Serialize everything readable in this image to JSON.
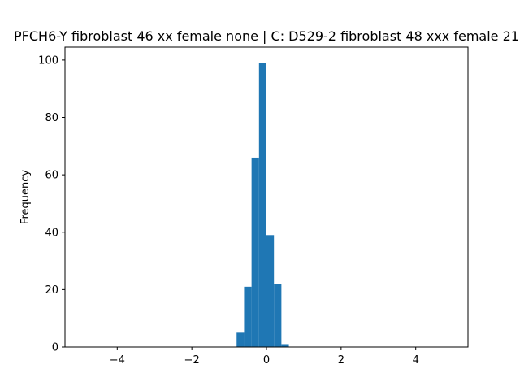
{
  "chart_data": {
    "type": "bar",
    "title": "PFCH6-Y fibroblast 46 xx female none | C: D529-2 fibroblast 48 xxx female 21",
    "xlabel": "",
    "ylabel": "Frequency",
    "xlim": [
      -5.4,
      5.4
    ],
    "ylim": [
      0,
      104.5
    ],
    "xticks": [
      -4,
      -2,
      0,
      2,
      4
    ],
    "xtick_labels": [
      "−4",
      "−2",
      "0",
      "2",
      "4"
    ],
    "yticks": [
      0,
      20,
      40,
      60,
      80,
      100
    ],
    "ytick_labels": [
      "0",
      "20",
      "40",
      "60",
      "80",
      "100"
    ],
    "grid": false,
    "bar_color": "#1f77b4",
    "bins": [
      {
        "x0": -0.8,
        "x1": -0.6,
        "count": 5
      },
      {
        "x0": -0.6,
        "x1": -0.4,
        "count": 21
      },
      {
        "x0": -0.4,
        "x1": -0.2,
        "count": 66
      },
      {
        "x0": -0.2,
        "x1": 0.0,
        "count": 99
      },
      {
        "x0": 0.0,
        "x1": 0.2,
        "count": 39
      },
      {
        "x0": 0.2,
        "x1": 0.4,
        "count": 22
      },
      {
        "x0": 0.4,
        "x1": 0.6,
        "count": 1
      }
    ]
  }
}
